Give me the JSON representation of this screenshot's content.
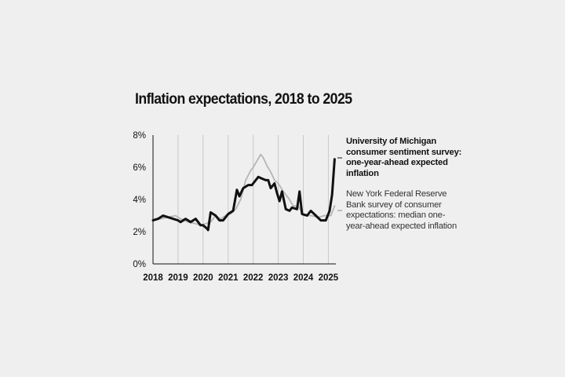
{
  "chart_data": {
    "type": "line",
    "title": "Inflation expectations, 2018 to 2025",
    "xlabel": "",
    "ylabel": "",
    "xlim": [
      2018.0,
      2025.3
    ],
    "ylim": [
      0,
      8
    ],
    "x_ticks": [
      "2018",
      "2019",
      "2020",
      "2021",
      "2022",
      "2023",
      "2024",
      "2025"
    ],
    "y_ticks": [
      "0%",
      "2%",
      "4%",
      "6%",
      "8%"
    ],
    "grid": "vertical",
    "legend_placement": "right",
    "colors": {
      "michigan": "#111111",
      "nyfed": "#b5b5b5",
      "grid": "#c8c8c8",
      "axis": "#111111"
    },
    "series": [
      {
        "name": "University of Michigan consumer sentiment survey: one-year-ahead expected inflation",
        "color": "#111111",
        "points": [
          [
            2018.0,
            2.7
          ],
          [
            2018.2,
            2.8
          ],
          [
            2018.4,
            3.0
          ],
          [
            2018.6,
            2.9
          ],
          [
            2018.8,
            2.8
          ],
          [
            2019.0,
            2.7
          ],
          [
            2019.1,
            2.6
          ],
          [
            2019.3,
            2.8
          ],
          [
            2019.5,
            2.6
          ],
          [
            2019.7,
            2.8
          ],
          [
            2019.9,
            2.4
          ],
          [
            2020.0,
            2.4
          ],
          [
            2020.15,
            2.2
          ],
          [
            2020.2,
            2.1
          ],
          [
            2020.3,
            3.2
          ],
          [
            2020.5,
            3.0
          ],
          [
            2020.65,
            2.7
          ],
          [
            2020.8,
            2.7
          ],
          [
            2021.0,
            3.1
          ],
          [
            2021.2,
            3.3
          ],
          [
            2021.35,
            4.6
          ],
          [
            2021.45,
            4.2
          ],
          [
            2021.6,
            4.7
          ],
          [
            2021.8,
            4.9
          ],
          [
            2021.95,
            4.9
          ],
          [
            2022.0,
            5.0
          ],
          [
            2022.2,
            5.4
          ],
          [
            2022.35,
            5.3
          ],
          [
            2022.5,
            5.2
          ],
          [
            2022.6,
            5.2
          ],
          [
            2022.7,
            4.7
          ],
          [
            2022.85,
            5.0
          ],
          [
            2022.95,
            4.4
          ],
          [
            2023.05,
            3.9
          ],
          [
            2023.15,
            4.5
          ],
          [
            2023.3,
            3.4
          ],
          [
            2023.45,
            3.3
          ],
          [
            2023.55,
            3.5
          ],
          [
            2023.75,
            3.4
          ],
          [
            2023.85,
            4.5
          ],
          [
            2023.95,
            3.1
          ],
          [
            2024.15,
            3.0
          ],
          [
            2024.3,
            3.3
          ],
          [
            2024.5,
            3.0
          ],
          [
            2024.7,
            2.7
          ],
          [
            2024.9,
            2.7
          ],
          [
            2025.05,
            3.3
          ],
          [
            2025.15,
            4.3
          ],
          [
            2025.25,
            6.5
          ]
        ]
      },
      {
        "name": "New York Federal Reserve Bank survey of consumer expectations: median one-year-ahead expected inflation",
        "color": "#b5b5b5",
        "points": [
          [
            2018.0,
            2.7
          ],
          [
            2018.3,
            2.8
          ],
          [
            2018.6,
            2.9
          ],
          [
            2018.9,
            3.0
          ],
          [
            2019.1,
            2.8
          ],
          [
            2019.4,
            2.6
          ],
          [
            2019.7,
            2.5
          ],
          [
            2019.9,
            2.4
          ],
          [
            2020.1,
            2.5
          ],
          [
            2020.3,
            2.6
          ],
          [
            2020.5,
            3.0
          ],
          [
            2020.7,
            2.8
          ],
          [
            2020.9,
            3.0
          ],
          [
            2021.1,
            3.1
          ],
          [
            2021.3,
            3.4
          ],
          [
            2021.5,
            4.0
          ],
          [
            2021.7,
            5.2
          ],
          [
            2021.9,
            5.8
          ],
          [
            2022.0,
            6.0
          ],
          [
            2022.15,
            6.4
          ],
          [
            2022.3,
            6.8
          ],
          [
            2022.4,
            6.6
          ],
          [
            2022.55,
            6.1
          ],
          [
            2022.7,
            5.7
          ],
          [
            2022.85,
            5.2
          ],
          [
            2023.0,
            5.0
          ],
          [
            2023.2,
            4.5
          ],
          [
            2023.4,
            4.1
          ],
          [
            2023.6,
            3.6
          ],
          [
            2023.8,
            3.6
          ],
          [
            2024.0,
            3.0
          ],
          [
            2024.3,
            3.0
          ],
          [
            2024.6,
            2.9
          ],
          [
            2024.85,
            3.0
          ],
          [
            2025.1,
            3.0
          ],
          [
            2025.25,
            3.6
          ]
        ]
      }
    ]
  }
}
